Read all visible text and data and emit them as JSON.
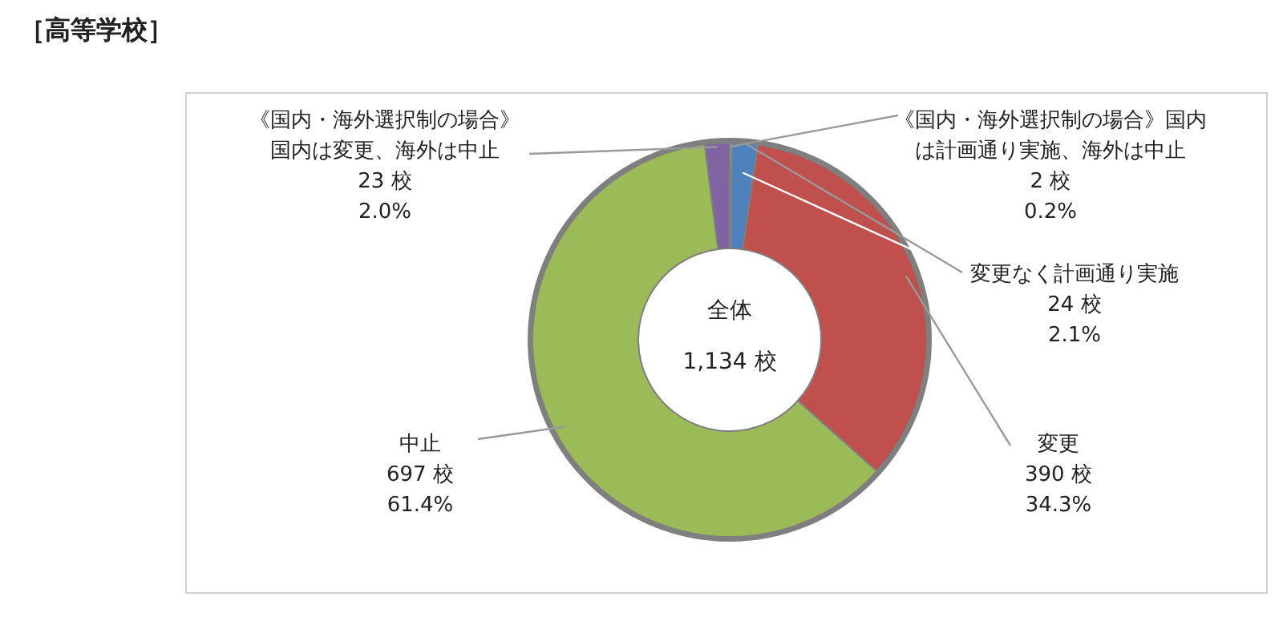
{
  "chart_data": {
    "type": "donut",
    "title": "［高等学校］",
    "categories": [
      "《国内・海外選択制の場合》国内は計画通り実施、海外は中止",
      "変更なく計画通り実施",
      "変更",
      "中止",
      "《国内・海外選択制の場合》国内は変更、海外は中止"
    ],
    "values": [
      2,
      24,
      390,
      697,
      23
    ],
    "value_labels": [
      "2 校\n0.2%",
      "24 校\n2.1%",
      "390 校\n34.3%",
      "697 校\n61.4%",
      "23 校\n2.0%"
    ],
    "colors": [
      "#c8c8c8",
      "#4f81bd",
      "#c0504d",
      "#9bbb59",
      "#8064a2"
    ],
    "annotations": [
      "全体",
      "1,134 校"
    ],
    "legend": false
  }
}
